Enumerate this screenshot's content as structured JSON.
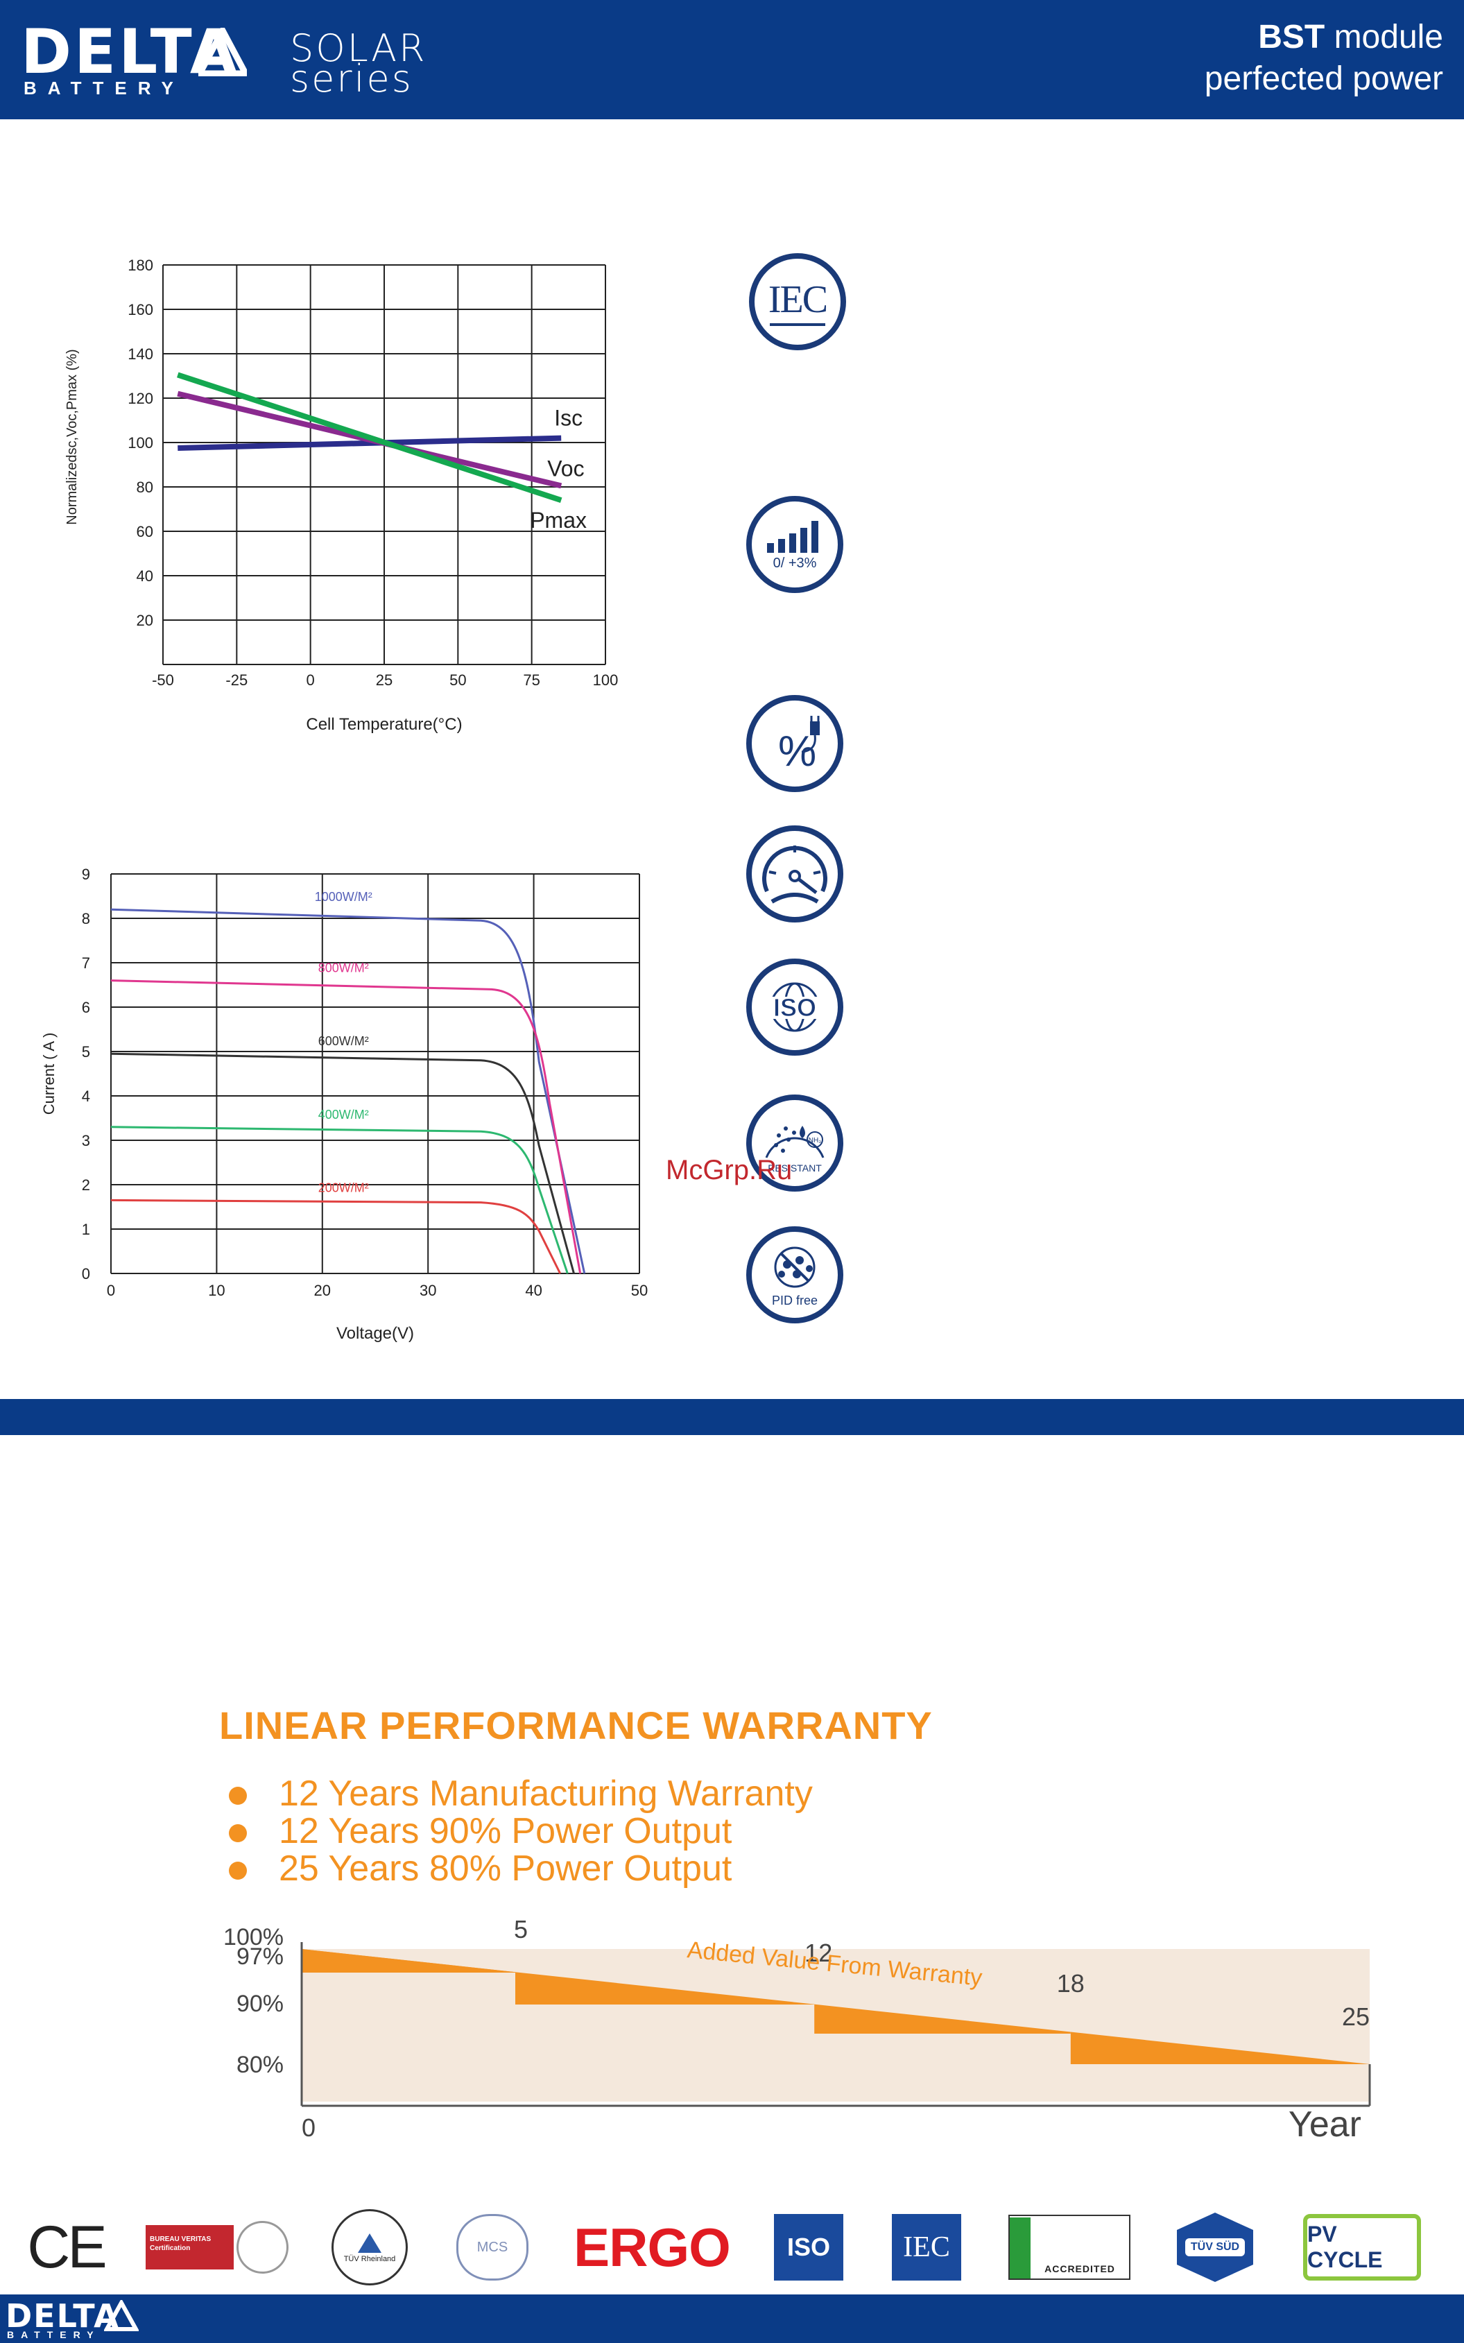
{
  "header": {
    "logo": "DELTA",
    "logo_sub": "BATTERY",
    "solar_line1": "SOLAR",
    "solar_line2": "series",
    "tagline_bold": "BST",
    "tagline_rest": " module",
    "tagline_line2": "perfected power"
  },
  "charts": [
    {
      "type": "line",
      "xlabel": "Cell Temperature(°C)",
      "ylabel": "Normalizedsc,Voc,Pmax  (%)",
      "xlim": [
        -50,
        100
      ],
      "ylim": [
        0,
        180
      ],
      "xticks": [
        "-50",
        "-25",
        "0",
        "25",
        "50",
        "75",
        "100"
      ],
      "yticks": [
        "20",
        "40",
        "60",
        "80",
        "100",
        "120",
        "140",
        "160",
        "180"
      ],
      "series": [
        {
          "name": "Isc",
          "color": "#2b2d8c",
          "x": [
            -45,
            85
          ],
          "y": [
            97.5,
            102
          ]
        },
        {
          "name": "Voc",
          "color": "#8a2a8f",
          "x": [
            -45,
            85
          ],
          "y": [
            122,
            80.5
          ]
        },
        {
          "name": "Pmax",
          "color": "#14a850",
          "x": [
            -45,
            85
          ],
          "y": [
            130.5,
            74
          ]
        }
      ]
    },
    {
      "type": "line",
      "xlabel": "Voltage(V)",
      "ylabel": "Current ( A )",
      "xlim": [
        0,
        50
      ],
      "ylim": [
        0,
        9
      ],
      "xticks": [
        "0",
        "10",
        "20",
        "30",
        "40",
        "50"
      ],
      "yticks": [
        "0",
        "1",
        "2",
        "3",
        "4",
        "5",
        "6",
        "7",
        "8",
        "9"
      ],
      "series": [
        {
          "name": "1000W/M²",
          "color": "#5560b8",
          "isc": 8.2,
          "imp": 7.95,
          "vknee": 35,
          "voc": 44.8
        },
        {
          "name": "800W/M²",
          "color": "#e0378f",
          "isc": 6.6,
          "imp": 6.4,
          "vknee": 36,
          "voc": 44.4
        },
        {
          "name": "600W/M²",
          "color": "#333333",
          "isc": 4.95,
          "imp": 4.8,
          "vknee": 35,
          "voc": 43.8
        },
        {
          "name": "400W/M²",
          "color": "#2db870",
          "isc": 3.3,
          "imp": 3.2,
          "vknee": 35,
          "voc": 43.2
        },
        {
          "name": "200W/M²",
          "color": "#e04040",
          "isc": 1.65,
          "imp": 1.6,
          "vknee": 35,
          "voc": 42.5
        }
      ]
    }
  ],
  "icons": {
    "iec": "IEC",
    "tolerance": "0/ +3%",
    "iso": "ISO",
    "resistant": "RESISTANT",
    "nh3": "NH₃",
    "pid": "PID free"
  },
  "watermark": "McGrp.Ru",
  "warranty": {
    "title": "LINEAR PERFORMANCE WARRANTY",
    "items": [
      "12 Years Manufacturing Warranty",
      "12 Years 90% Power Output",
      "25 Years 80% Power Output"
    ],
    "chart_data": {
      "type": "area",
      "y_labels": [
        "100%",
        "97%",
        "90%",
        "80%"
      ],
      "x_labels": [
        "0",
        "5",
        "12",
        "18",
        "25"
      ],
      "x_axis_label": "Year",
      "annotation": "Added Value From Warranty",
      "linear_start": 100,
      "linear_end": 80,
      "step_values": [
        97,
        95,
        90,
        87,
        80
      ],
      "colors": {
        "area": "#f4e8dc",
        "orange": "#f39221"
      }
    }
  },
  "certifications": [
    "CE",
    "BUREAU VERITAS Certification",
    "TÜV Rheinland",
    "MCS",
    "ERGO",
    "ISO",
    "IEC",
    "ACCREDITED",
    "TÜV SÜD",
    "PV CYCLE"
  ],
  "footer": {
    "logo": "DELTA",
    "logo_sub": "BATTERY"
  }
}
